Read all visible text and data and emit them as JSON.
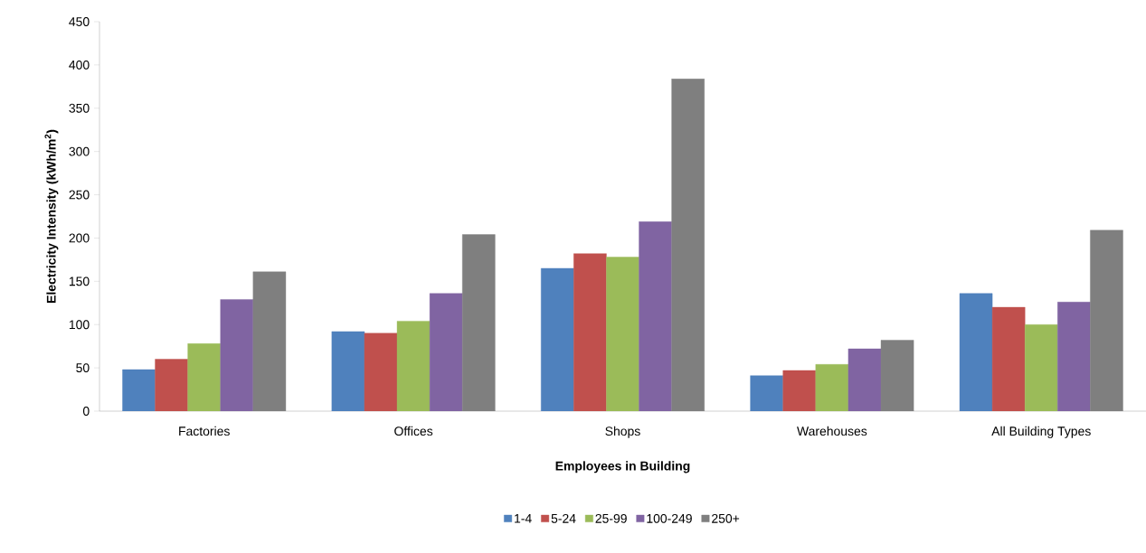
{
  "chart_data": {
    "type": "bar",
    "xlabel": "Employees in Building",
    "ylabel": "Electricity Intensity (kWh/m$^{2}$)",
    "categories": [
      "Factories",
      "Offices",
      "Shops",
      "Warehouses",
      "All Building Types"
    ],
    "series": [
      {
        "name": "1-4",
        "color": "#4f81bd",
        "values": [
          48,
          92,
          165,
          41,
          136
        ]
      },
      {
        "name": "5-24",
        "color": "#c0504d",
        "values": [
          60,
          90,
          182,
          47,
          120
        ]
      },
      {
        "name": "25-99",
        "color": "#9bbb59",
        "values": [
          78,
          104,
          178,
          54,
          100
        ]
      },
      {
        "name": "100-249",
        "color": "#8064a2",
        "values": [
          129,
          136,
          219,
          72,
          126
        ]
      },
      {
        "name": "250+",
        "color": "#7f7f7f",
        "values": [
          161,
          204,
          384,
          82,
          209
        ]
      }
    ],
    "ylim": [
      0,
      450
    ],
    "yticks": [
      0,
      50,
      100,
      150,
      200,
      250,
      300,
      350,
      400,
      450
    ],
    "grid": false,
    "legend": "bottom"
  }
}
